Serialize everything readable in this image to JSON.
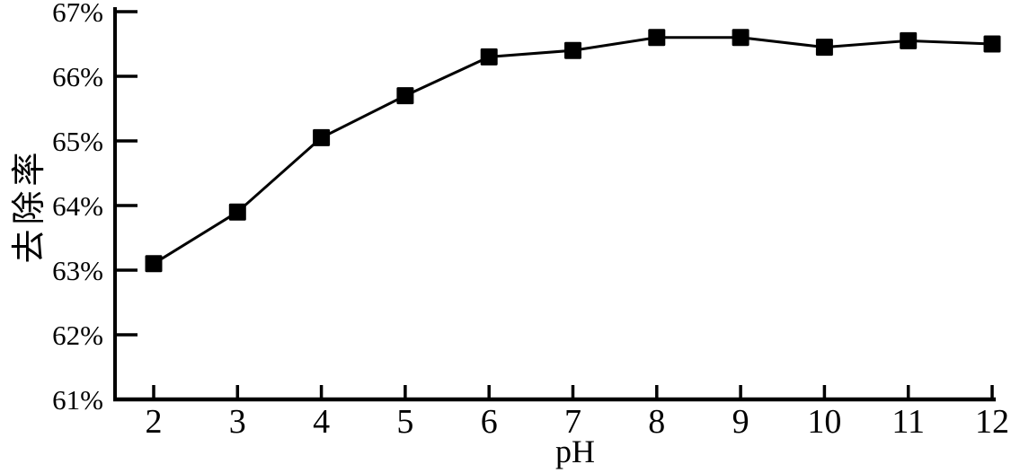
{
  "figure": {
    "background": "#ffffff",
    "ink_color": "#000000"
  },
  "chart_data": {
    "type": "line",
    "title": "",
    "xlabel": "pH",
    "ylabel": "去除率",
    "x": [
      2,
      3,
      4,
      5,
      6,
      7,
      8,
      9,
      10,
      11,
      12
    ],
    "series": [
      {
        "name": "去除率",
        "marker": "filled-square",
        "color": "#000000",
        "values": [
          63.1,
          63.9,
          65.05,
          65.7,
          66.3,
          66.4,
          66.6,
          66.6,
          66.45,
          66.55,
          66.5
        ]
      }
    ],
    "x_tick_labels": [
      "2",
      "3",
      "4",
      "5",
      "6",
      "7",
      "8",
      "9",
      "10",
      "11",
      "12"
    ],
    "y_ticks": [
      61,
      62,
      63,
      64,
      65,
      66,
      67
    ],
    "y_tick_labels": [
      "61%",
      "62%",
      "63%",
      "64%",
      "65%",
      "66%",
      "67%"
    ],
    "xlim": [
      2,
      12
    ],
    "ylim": [
      61,
      67
    ],
    "grid": false,
    "legend_position": "none",
    "tick_direction": "in"
  }
}
